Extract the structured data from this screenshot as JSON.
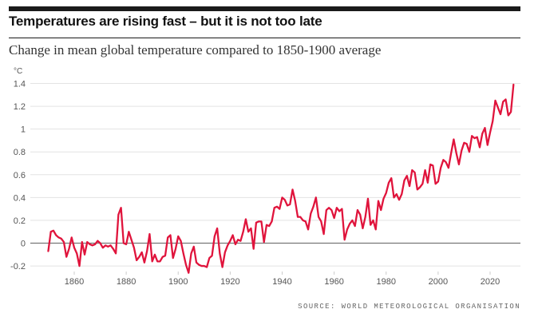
{
  "title": "Temperatures are rising fast – but it is not too late",
  "subtitle": "Change in mean global temperature compared to 1850-1900 average",
  "source": "SOURCE: WORLD METEOROLOGICAL ORGANISATION",
  "colors": {
    "line": "#e0143c",
    "grid": "#e3e3e3",
    "zero": "#777777",
    "text": "#555555"
  },
  "chart_data": {
    "type": "line",
    "title": "Temperatures are rising fast – but it is not too late",
    "subtitle": "Change in mean global temperature compared to 1850-1900 average",
    "ylabel": "°C",
    "xlabel": "",
    "xlim": [
      1850,
      2023
    ],
    "ylim": [
      -0.25,
      1.42
    ],
    "grid": true,
    "x_ticks": [
      1860,
      1880,
      1900,
      1920,
      1940,
      1960,
      1980,
      2000,
      2020
    ],
    "y_ticks": [
      1.4,
      1.2,
      1,
      0.8,
      0.6,
      0.4,
      0.2,
      0,
      -0.2
    ],
    "y_tick_labels": [
      "1.4",
      "1.2",
      "1",
      "0.8",
      "0.6",
      "0.4",
      "0.2",
      "0",
      "-0.2"
    ],
    "series": [
      {
        "values": [
          [
            1850,
            -0.07
          ],
          [
            1851,
            0.1
          ],
          [
            1852,
            0.11
          ],
          [
            1853,
            0.07
          ],
          [
            1854,
            0.05
          ],
          [
            1855,
            0.04
          ],
          [
            1856,
            0.01
          ],
          [
            1857,
            -0.12
          ],
          [
            1858,
            -0.05
          ],
          [
            1859,
            0.05
          ],
          [
            1860,
            -0.04
          ],
          [
            1861,
            -0.09
          ],
          [
            1862,
            -0.2
          ],
          [
            1863,
            0.01
          ],
          [
            1864,
            -0.1
          ],
          [
            1865,
            0.01
          ],
          [
            1866,
            -0.01
          ],
          [
            1867,
            -0.02
          ],
          [
            1868,
            -0.01
          ],
          [
            1869,
            0.02
          ],
          [
            1870,
            0.0
          ],
          [
            1871,
            -0.04
          ],
          [
            1872,
            -0.02
          ],
          [
            1873,
            -0.03
          ],
          [
            1874,
            -0.02
          ],
          [
            1875,
            -0.05
          ],
          [
            1876,
            -0.09
          ],
          [
            1877,
            0.25
          ],
          [
            1878,
            0.31
          ],
          [
            1879,
            0.0
          ],
          [
            1880,
            -0.01
          ],
          [
            1881,
            0.1
          ],
          [
            1882,
            0.03
          ],
          [
            1883,
            -0.04
          ],
          [
            1884,
            -0.15
          ],
          [
            1885,
            -0.12
          ],
          [
            1886,
            -0.08
          ],
          [
            1887,
            -0.17
          ],
          [
            1888,
            -0.07
          ],
          [
            1889,
            0.08
          ],
          [
            1890,
            -0.16
          ],
          [
            1891,
            -0.1
          ],
          [
            1892,
            -0.16
          ],
          [
            1893,
            -0.16
          ],
          [
            1894,
            -0.12
          ],
          [
            1895,
            -0.11
          ],
          [
            1896,
            0.05
          ],
          [
            1897,
            0.07
          ],
          [
            1898,
            -0.13
          ],
          [
            1899,
            -0.05
          ],
          [
            1900,
            0.06
          ],
          [
            1901,
            0.02
          ],
          [
            1902,
            -0.09
          ],
          [
            1903,
            -0.19
          ],
          [
            1904,
            -0.26
          ],
          [
            1905,
            -0.09
          ],
          [
            1906,
            -0.03
          ],
          [
            1907,
            -0.17
          ],
          [
            1908,
            -0.19
          ],
          [
            1909,
            -0.2
          ],
          [
            1910,
            -0.2
          ],
          [
            1911,
            -0.21
          ],
          [
            1912,
            -0.13
          ],
          [
            1913,
            -0.11
          ],
          [
            1914,
            0.06
          ],
          [
            1915,
            0.13
          ],
          [
            1916,
            -0.09
          ],
          [
            1917,
            -0.21
          ],
          [
            1918,
            -0.08
          ],
          [
            1919,
            -0.02
          ],
          [
            1920,
            0.02
          ],
          [
            1921,
            0.07
          ],
          [
            1922,
            -0.01
          ],
          [
            1923,
            0.03
          ],
          [
            1924,
            0.02
          ],
          [
            1925,
            0.1
          ],
          [
            1926,
            0.21
          ],
          [
            1927,
            0.1
          ],
          [
            1928,
            0.13
          ],
          [
            1929,
            -0.05
          ],
          [
            1930,
            0.18
          ],
          [
            1931,
            0.19
          ],
          [
            1932,
            0.19
          ],
          [
            1933,
            0.01
          ],
          [
            1934,
            0.16
          ],
          [
            1935,
            0.15
          ],
          [
            1936,
            0.19
          ],
          [
            1937,
            0.31
          ],
          [
            1938,
            0.32
          ],
          [
            1939,
            0.3
          ],
          [
            1940,
            0.4
          ],
          [
            1941,
            0.38
          ],
          [
            1942,
            0.33
          ],
          [
            1943,
            0.34
          ],
          [
            1944,
            0.47
          ],
          [
            1945,
            0.37
          ],
          [
            1946,
            0.23
          ],
          [
            1947,
            0.23
          ],
          [
            1948,
            0.2
          ],
          [
            1949,
            0.19
          ],
          [
            1950,
            0.12
          ],
          [
            1951,
            0.26
          ],
          [
            1952,
            0.32
          ],
          [
            1953,
            0.4
          ],
          [
            1954,
            0.23
          ],
          [
            1955,
            0.19
          ],
          [
            1956,
            0.08
          ],
          [
            1957,
            0.29
          ],
          [
            1958,
            0.31
          ],
          [
            1959,
            0.29
          ],
          [
            1960,
            0.22
          ],
          [
            1961,
            0.31
          ],
          [
            1962,
            0.28
          ],
          [
            1963,
            0.3
          ],
          [
            1964,
            0.03
          ],
          [
            1965,
            0.12
          ],
          [
            1966,
            0.17
          ],
          [
            1967,
            0.2
          ],
          [
            1968,
            0.15
          ],
          [
            1969,
            0.29
          ],
          [
            1970,
            0.25
          ],
          [
            1971,
            0.13
          ],
          [
            1972,
            0.23
          ],
          [
            1973,
            0.39
          ],
          [
            1974,
            0.16
          ],
          [
            1975,
            0.2
          ],
          [
            1976,
            0.12
          ],
          [
            1977,
            0.37
          ],
          [
            1978,
            0.29
          ],
          [
            1979,
            0.39
          ],
          [
            1980,
            0.44
          ],
          [
            1981,
            0.53
          ],
          [
            1982,
            0.57
          ],
          [
            1983,
            0.4
          ],
          [
            1984,
            0.43
          ],
          [
            1985,
            0.38
          ],
          [
            1986,
            0.43
          ],
          [
            1987,
            0.55
          ],
          [
            1988,
            0.59
          ],
          [
            1989,
            0.5
          ],
          [
            1990,
            0.64
          ],
          [
            1991,
            0.62
          ],
          [
            1992,
            0.47
          ],
          [
            1993,
            0.49
          ],
          [
            1994,
            0.52
          ],
          [
            1995,
            0.64
          ],
          [
            1996,
            0.53
          ],
          [
            1997,
            0.69
          ],
          [
            1998,
            0.68
          ],
          [
            1999,
            0.52
          ],
          [
            2000,
            0.54
          ],
          [
            2001,
            0.66
          ],
          [
            2002,
            0.73
          ],
          [
            2003,
            0.71
          ],
          [
            2004,
            0.66
          ],
          [
            2005,
            0.79
          ],
          [
            2006,
            0.91
          ],
          [
            2007,
            0.79
          ],
          [
            2008,
            0.69
          ],
          [
            2009,
            0.81
          ],
          [
            2010,
            0.88
          ],
          [
            2011,
            0.87
          ],
          [
            2012,
            0.8
          ],
          [
            2013,
            0.94
          ],
          [
            2014,
            0.92
          ],
          [
            2015,
            0.93
          ],
          [
            2016,
            0.84
          ],
          [
            2017,
            0.96
          ],
          [
            2018,
            1.01
          ],
          [
            2019,
            0.86
          ],
          [
            2020,
            0.97
          ],
          [
            2021,
            1.07
          ],
          [
            2022,
            1.25
          ],
          [
            2023,
            1.19
          ],
          [
            2024,
            1.13
          ],
          [
            2025,
            1.24
          ],
          [
            2026,
            1.26
          ],
          [
            2027,
            1.12
          ],
          [
            2028,
            1.15
          ],
          [
            2029,
            1.39
          ]
        ]
      }
    ]
  }
}
